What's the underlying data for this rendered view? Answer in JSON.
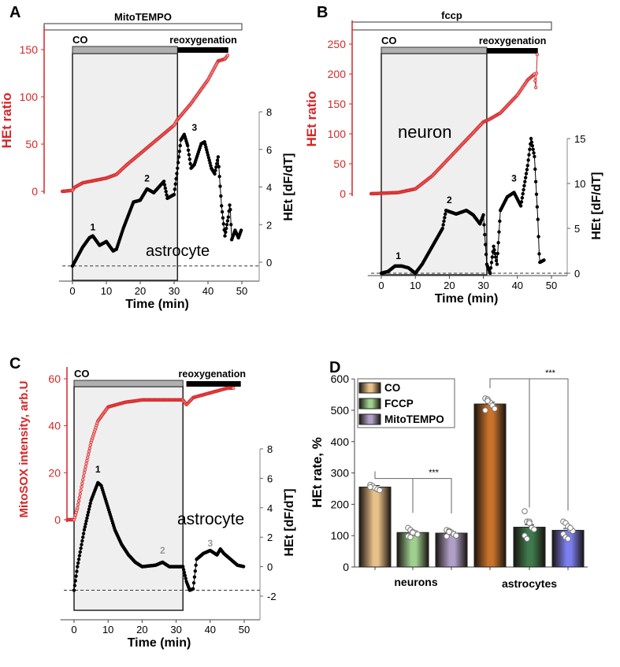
{
  "chart_data": [
    {
      "panel": "A",
      "type": "line",
      "treatment": "MitoTEMPO",
      "co_label": "CO",
      "reox_label": "reoxygenation",
      "cell_label": "astrocyte",
      "xlabel": "Time (min)",
      "ylabel": "HEt ratio",
      "y2label": "HEt [dF/dT]",
      "xlim": [
        -5,
        55
      ],
      "xticks": [
        0,
        10,
        20,
        30,
        40,
        50
      ],
      "ylim": [
        0,
        150
      ],
      "yticks": [
        0,
        50,
        100,
        150
      ],
      "y2lim": [
        0,
        8
      ],
      "y2ticks": [
        0,
        2,
        4,
        6,
        8
      ],
      "co_period": [
        0,
        31
      ],
      "reox_period": [
        31,
        46
      ],
      "peaks": [
        {
          "label": "1",
          "t": 6,
          "y": 1.7
        },
        {
          "label": "2",
          "t": 22,
          "y": 4.3
        },
        {
          "label": "3",
          "t": 36,
          "y": 7.0
        }
      ],
      "red": [
        [
          -3,
          0
        ],
        [
          0,
          1
        ],
        [
          0.5,
          4
        ],
        [
          3,
          9
        ],
        [
          10,
          14
        ],
        [
          13,
          18
        ],
        [
          16,
          28
        ],
        [
          20,
          40
        ],
        [
          25,
          55
        ],
        [
          30,
          70
        ],
        [
          31,
          76
        ],
        [
          35,
          93
        ],
        [
          40,
          118
        ],
        [
          43,
          138
        ],
        [
          45,
          140
        ],
        [
          46,
          145
        ]
      ],
      "black": [
        [
          0,
          -0.2
        ],
        [
          3,
          0.8
        ],
        [
          5,
          1.3
        ],
        [
          6,
          1.4
        ],
        [
          8,
          0.9
        ],
        [
          10,
          1.1
        ],
        [
          12,
          0.6
        ],
        [
          13,
          0.7
        ],
        [
          15,
          1.8
        ],
        [
          18,
          3.2
        ],
        [
          20,
          3.3
        ],
        [
          22,
          3.9
        ],
        [
          24,
          3.7
        ],
        [
          26,
          4.1
        ],
        [
          27,
          4.3
        ],
        [
          28,
          3.4
        ],
        [
          30,
          3.6
        ],
        [
          31,
          5.0
        ],
        [
          32,
          6.5
        ],
        [
          33,
          6.8
        ],
        [
          34,
          6.2
        ],
        [
          35,
          5.0
        ],
        [
          36,
          5.2
        ],
        [
          38,
          6.3
        ],
        [
          39,
          6.4
        ],
        [
          41,
          5.0
        ],
        [
          42,
          4.7
        ],
        [
          43,
          5.6
        ],
        [
          44,
          3.0
        ],
        [
          45,
          1.4
        ],
        [
          46,
          2.4
        ],
        [
          46.5,
          3.2
        ],
        [
          47,
          1.2
        ],
        [
          48,
          1.7
        ],
        [
          49,
          1.3
        ],
        [
          50,
          1.8
        ]
      ]
    },
    {
      "panel": "B",
      "type": "line",
      "treatment": "fccp",
      "co_label": "CO",
      "reox_label": "reoxygenation",
      "cell_label": "neuron",
      "xlabel": "Time (min)",
      "ylabel": "HEt ratio",
      "y2label": "HEt [dF/dT]",
      "xlim": [
        -5,
        55
      ],
      "xticks": [
        0,
        10,
        20,
        30,
        40,
        50
      ],
      "ylim": [
        0,
        250
      ],
      "yticks": [
        0,
        50,
        100,
        150,
        200,
        250
      ],
      "y2lim": [
        0,
        15
      ],
      "y2ticks": [
        0,
        5,
        10,
        15
      ],
      "co_period": [
        0,
        31
      ],
      "reox_period": [
        31,
        46
      ],
      "peaks": [
        {
          "label": "1",
          "t": 5,
          "y": 1.6
        },
        {
          "label": "2",
          "t": 20,
          "y": 7.8
        },
        {
          "label": "3",
          "t": 39,
          "y": 10.2
        }
      ],
      "red": [
        [
          -3,
          0
        ],
        [
          5,
          2
        ],
        [
          10,
          8
        ],
        [
          15,
          30
        ],
        [
          20,
          60
        ],
        [
          25,
          90
        ],
        [
          30,
          120
        ],
        [
          32,
          125
        ],
        [
          35,
          135
        ],
        [
          40,
          165
        ],
        [
          43,
          190
        ],
        [
          45,
          200
        ],
        [
          45.5,
          172
        ],
        [
          45.7,
          230
        ],
        [
          46,
          238
        ]
      ],
      "black": [
        [
          0,
          0
        ],
        [
          2,
          0.2
        ],
        [
          4,
          0.8
        ],
        [
          6,
          0.8
        ],
        [
          8,
          0.6
        ],
        [
          10,
          0
        ],
        [
          12,
          1
        ],
        [
          15,
          3
        ],
        [
          18,
          5
        ],
        [
          19,
          7
        ],
        [
          22,
          6.6
        ],
        [
          25,
          7
        ],
        [
          27,
          6.5
        ],
        [
          29,
          5.5
        ],
        [
          30,
          6.5
        ],
        [
          31,
          1
        ],
        [
          32,
          0
        ],
        [
          33,
          3
        ],
        [
          34,
          1
        ],
        [
          35,
          7
        ],
        [
          37,
          8.5
        ],
        [
          39,
          9
        ],
        [
          41,
          7.5
        ],
        [
          43,
          12
        ],
        [
          44,
          15
        ],
        [
          45,
          13
        ],
        [
          46,
          6
        ],
        [
          46.5,
          1.2
        ],
        [
          48,
          1.5
        ]
      ]
    },
    {
      "panel": "C",
      "type": "line",
      "co_label": "CO",
      "reox_label": "reoxygenation",
      "cell_label": "astrocyte",
      "xlabel": "Time (min)",
      "ylabel": "MitoSOX intensity, arb.U",
      "y2label": "HEt [dF/dT]",
      "xlim": [
        -5,
        55
      ],
      "xticks": [
        0,
        10,
        20,
        30,
        40,
        50
      ],
      "ylim": [
        0,
        60
      ],
      "yticks": [
        0,
        20,
        40,
        60
      ],
      "y2lim": [
        -2,
        8
      ],
      "y2ticks": [
        -2,
        0,
        2,
        4,
        6,
        8
      ],
      "co_period": [
        0,
        32
      ],
      "reox_period": [
        33,
        49
      ],
      "peaks": [
        {
          "label": "1",
          "t": 7,
          "y": 6.4
        },
        {
          "label": "2",
          "t": 26,
          "y": 0.9
        },
        {
          "label": "3",
          "t": 40,
          "y": 1.8
        }
      ],
      "red": [
        [
          -2,
          0
        ],
        [
          0,
          0
        ],
        [
          1,
          5
        ],
        [
          3,
          20
        ],
        [
          5,
          33
        ],
        [
          7,
          42
        ],
        [
          10,
          48
        ],
        [
          15,
          50
        ],
        [
          20,
          51
        ],
        [
          30,
          51
        ],
        [
          32,
          51
        ],
        [
          33,
          49
        ],
        [
          35,
          52
        ],
        [
          40,
          54
        ],
        [
          45,
          56
        ],
        [
          47,
          56
        ]
      ],
      "black": [
        [
          0,
          -1.6
        ],
        [
          1,
          0
        ],
        [
          3,
          2.5
        ],
        [
          5,
          4.5
        ],
        [
          7,
          5.7
        ],
        [
          8,
          5.5
        ],
        [
          10,
          4
        ],
        [
          12,
          2.5
        ],
        [
          14,
          1.5
        ],
        [
          16,
          0.8
        ],
        [
          18,
          0.3
        ],
        [
          20,
          0
        ],
        [
          24,
          0.1
        ],
        [
          26,
          0.3
        ],
        [
          28,
          0
        ],
        [
          32,
          0
        ],
        [
          33,
          -1
        ],
        [
          34,
          -1.6
        ],
        [
          35,
          -1.5
        ],
        [
          36,
          0.5
        ],
        [
          38,
          0.9
        ],
        [
          40,
          1.1
        ],
        [
          42,
          0.8
        ],
        [
          43,
          1.2
        ],
        [
          44,
          0.9
        ],
        [
          46,
          0.5
        ],
        [
          48,
          0.1
        ],
        [
          50,
          0
        ]
      ]
    },
    {
      "panel": "D",
      "type": "bar",
      "ylabel": "HEt rate, %",
      "ylim": [
        0,
        600
      ],
      "yticks": [
        0,
        100,
        200,
        300,
        400,
        500,
        600
      ],
      "groups": [
        "neurons",
        "astrocytes"
      ],
      "legend": [
        "CO",
        "FCCP",
        "MitoTEMPO"
      ],
      "significance": "***",
      "bars": [
        {
          "group": "neurons",
          "series": "CO",
          "value": 255,
          "err": 5,
          "color": "#e8c08a",
          "points": [
            262,
            258,
            252,
            248,
            245,
            255
          ]
        },
        {
          "group": "neurons",
          "series": "FCCP",
          "value": 110,
          "err": 5,
          "color": "#9fd08f",
          "points": [
            125,
            118,
            112,
            108,
            104,
            98,
            95,
            110
          ]
        },
        {
          "group": "neurons",
          "series": "MitoTEMPO",
          "value": 108,
          "err": 4,
          "color": "#b0a0c8",
          "points": [
            118,
            115,
            110,
            105,
            100,
            98,
            112
          ]
        },
        {
          "group": "astrocytes",
          "series": "CO",
          "value": 520,
          "err": 6,
          "color": "#c8722a",
          "points": [
            538,
            535,
            525,
            515,
            505,
            500,
            530
          ]
        },
        {
          "group": "astrocytes",
          "series": "FCCP",
          "value": 127,
          "err": 8,
          "color": "#3e7a4c",
          "points": [
            178,
            145,
            145,
            125,
            120,
            100,
            90,
            140
          ]
        },
        {
          "group": "astrocytes",
          "series": "MitoTEMPO",
          "value": 117,
          "err": 6,
          "color": "#7b7ff0",
          "points": [
            145,
            140,
            130,
            120,
            115,
            105,
            95,
            90,
            125
          ]
        }
      ]
    }
  ],
  "colors": {
    "red": "#d62728",
    "black": "#000000",
    "shade": "#efefef",
    "co_bar": "#b0b0b0"
  }
}
